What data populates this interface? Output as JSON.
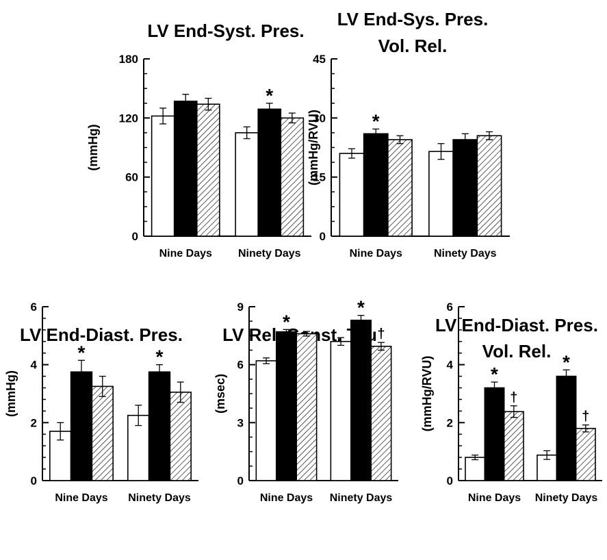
{
  "chart_data": [
    {
      "type": "bar",
      "title": "LV End-Syst. Pres.",
      "ylabel": "(mmHg)",
      "ylim": [
        0,
        180
      ],
      "yticks": [
        0,
        60,
        120,
        180
      ],
      "minor_ticks": 3,
      "categories": [
        "Nine Days",
        "Ninety Days"
      ],
      "series": [
        {
          "style": "open",
          "values": [
            122,
            105
          ],
          "errors": [
            8,
            6
          ]
        },
        {
          "style": "solid",
          "values": [
            137,
            129
          ],
          "errors": [
            7,
            6
          ]
        },
        {
          "style": "hatched",
          "values": [
            134,
            120
          ],
          "errors": [
            6,
            5
          ]
        }
      ],
      "annotations": [
        {
          "category": 1,
          "series": 1,
          "text": "*"
        }
      ]
    },
    {
      "type": "bar",
      "title": "LV End-Sys. Pres. Vol. Rel.",
      "title_lines": [
        "LV End-Sys. Pres.",
        "Vol. Rel."
      ],
      "ylabel": "(mmHg/RVU)",
      "ylim": [
        0,
        45
      ],
      "yticks": [
        0,
        15,
        30,
        45
      ],
      "minor_ticks": 3,
      "categories": [
        "Nine Days",
        "Ninety Days"
      ],
      "series": [
        {
          "style": "open",
          "values": [
            21,
            21.5
          ],
          "errors": [
            1.2,
            2
          ]
        },
        {
          "style": "solid",
          "values": [
            26,
            24.5
          ],
          "errors": [
            1.2,
            1.5
          ]
        },
        {
          "style": "hatched",
          "values": [
            24.5,
            25.5
          ],
          "errors": [
            1,
            1
          ]
        }
      ],
      "annotations": [
        {
          "category": 0,
          "series": 1,
          "text": "*"
        }
      ]
    },
    {
      "type": "bar",
      "title": "LV End-Diast. Pres.",
      "ylabel": "(mmHg)",
      "ylim": [
        0,
        6
      ],
      "yticks": [
        0,
        2,
        4,
        6
      ],
      "minor_ticks": 4,
      "categories": [
        "Nine Days",
        "Ninety Days"
      ],
      "series": [
        {
          "style": "open",
          "values": [
            1.7,
            2.25
          ],
          "errors": [
            0.3,
            0.35
          ]
        },
        {
          "style": "solid",
          "values": [
            3.75,
            3.75
          ],
          "errors": [
            0.4,
            0.25
          ]
        },
        {
          "style": "hatched",
          "values": [
            3.25,
            3.05
          ],
          "errors": [
            0.35,
            0.35
          ]
        }
      ],
      "annotations": [
        {
          "category": 0,
          "series": 1,
          "text": "*"
        },
        {
          "category": 1,
          "series": 1,
          "text": "*"
        }
      ]
    },
    {
      "type": "bar",
      "title": "LV Rel. Const. Tau",
      "ylabel": "(msec)",
      "ylim": [
        0,
        9
      ],
      "yticks": [
        0,
        3,
        6,
        9
      ],
      "minor_ticks": 3,
      "categories": [
        "Nine Days",
        "Ninety Days"
      ],
      "series": [
        {
          "style": "open",
          "values": [
            6.2,
            7.2
          ],
          "errors": [
            0.15,
            0.2
          ]
        },
        {
          "style": "solid",
          "values": [
            7.7,
            8.3
          ],
          "errors": [
            0.12,
            0.25
          ]
        },
        {
          "style": "hatched",
          "values": [
            7.6,
            6.95
          ],
          "errors": [
            0.12,
            0.2
          ]
        }
      ],
      "annotations": [
        {
          "category": 0,
          "series": 1,
          "text": "*"
        },
        {
          "category": 1,
          "series": 1,
          "text": "*"
        },
        {
          "category": 1,
          "series": 2,
          "text": "†"
        }
      ]
    },
    {
      "type": "bar",
      "title": "LV End-Diast. Pres. Vol. Rel.",
      "title_lines": [
        "LV End-Diast. Pres.",
        "Vol. Rel."
      ],
      "ylabel": "(mmHg/RVU)",
      "ylim": [
        0,
        6
      ],
      "yticks": [
        0,
        2,
        4,
        6
      ],
      "minor_ticks": 4,
      "categories": [
        "Nine Days",
        "Ninety Days"
      ],
      "series": [
        {
          "style": "open",
          "values": [
            0.8,
            0.88
          ],
          "errors": [
            0.08,
            0.15
          ]
        },
        {
          "style": "solid",
          "values": [
            3.2,
            3.6
          ],
          "errors": [
            0.2,
            0.22
          ]
        },
        {
          "style": "hatched",
          "values": [
            2.38,
            1.8
          ],
          "errors": [
            0.2,
            0.12
          ]
        }
      ],
      "annotations": [
        {
          "category": 0,
          "series": 1,
          "text": "*"
        },
        {
          "category": 0,
          "series": 2,
          "text": "†"
        },
        {
          "category": 1,
          "series": 1,
          "text": "*"
        },
        {
          "category": 1,
          "series": 2,
          "text": "†"
        }
      ]
    }
  ]
}
